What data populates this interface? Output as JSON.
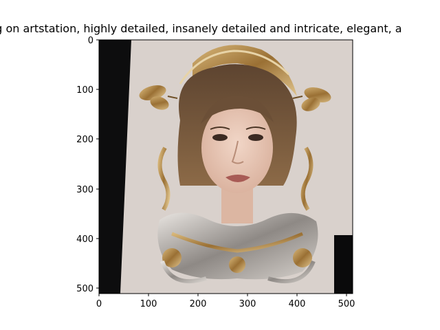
{
  "title": "trending on artstation, highly detailed, insanely detailed and intricate, elegant, a",
  "x_ticks": [
    "0",
    "100",
    "200",
    "300",
    "400",
    "500"
  ],
  "y_ticks": [
    "0",
    "100",
    "200",
    "300",
    "400",
    "500"
  ],
  "x_range": [
    0,
    512
  ],
  "y_range": [
    0,
    512
  ],
  "image": {
    "subject": "portrait of a woman with ornate gold and silver jewelry, butterflies and tiara on a paper sheet",
    "colors": {
      "background_dark": "#0d0d0e",
      "paper": "#d9d1cc",
      "hair": "#7a5a3c",
      "skin": "#e8c9b8",
      "gold": "#b48a4a",
      "silver": "#b7b2ad"
    }
  }
}
